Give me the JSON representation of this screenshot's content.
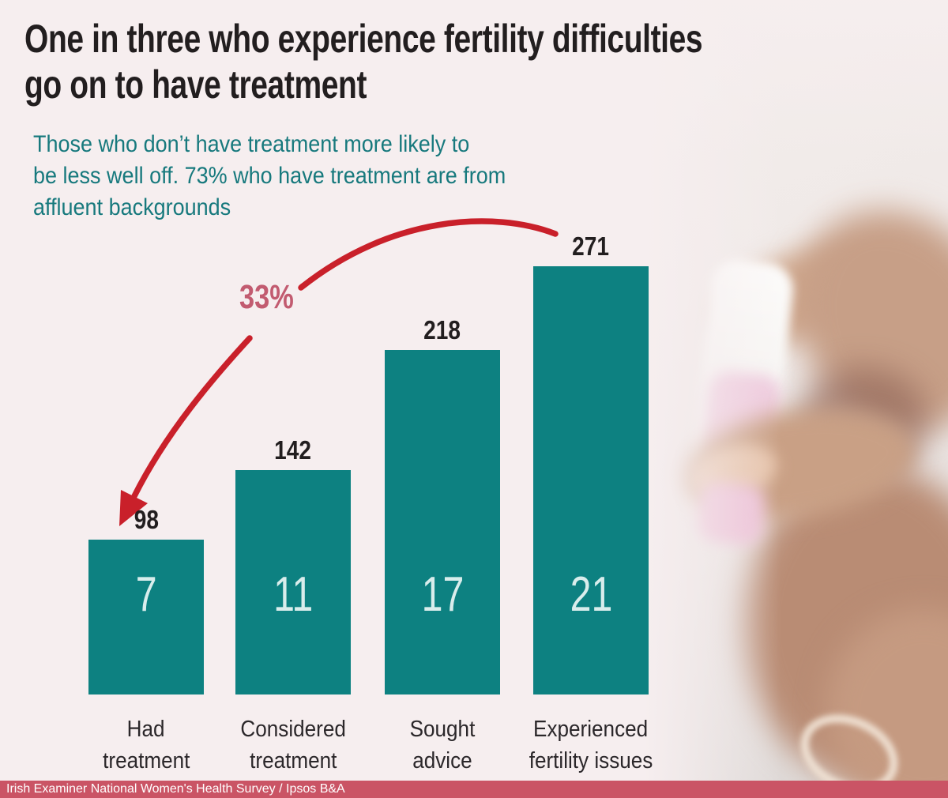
{
  "title": {
    "lines": [
      "One in three who experience fertility difficulties",
      "go on to have treatment"
    ]
  },
  "subtitle": {
    "lines": [
      "Those who don’t have treatment more likely to",
      "be less well off. 73% who have treatment are from",
      "affluent backgrounds"
    ]
  },
  "chart_data": {
    "type": "bar",
    "title": "One in three who experience fertility difficulties go on to have treatment",
    "categories": [
      "Had treatment",
      "Considered treatment",
      "Sought advice",
      "Experienced fertility issues"
    ],
    "values": [
      98,
      142,
      218,
      271
    ],
    "bar_value_labels": [
      "98",
      "142",
      "218",
      "271"
    ],
    "inner_labels": [
      "7",
      "11",
      "17",
      "21"
    ],
    "category_lines": [
      [
        "Had",
        "treatment"
      ],
      [
        "Considered",
        "treatment"
      ],
      [
        "Sought",
        "advice"
      ],
      [
        "Experienced",
        "fertility issues"
      ]
    ],
    "annotation": {
      "text": "33%",
      "arrow_from_category": "Experienced fertility issues",
      "arrow_to_category": "Had treatment"
    },
    "ylim": [
      0,
      280
    ],
    "grid": false,
    "legend": false
  },
  "footer": {
    "text": "Irish Examiner National Women's Health Survey / Ipsos B&A"
  },
  "colors": {
    "background": "#f6eeef",
    "bar": "#0d8181",
    "ink": "#221e1f",
    "subtitle_teal": "#17797d",
    "rose_pct": "#c25b70",
    "arrow_red": "#c9202a",
    "footer_bg": "#ca5465",
    "footer_text": "#ffffff",
    "bar_inner_label": "#d9edec"
  }
}
